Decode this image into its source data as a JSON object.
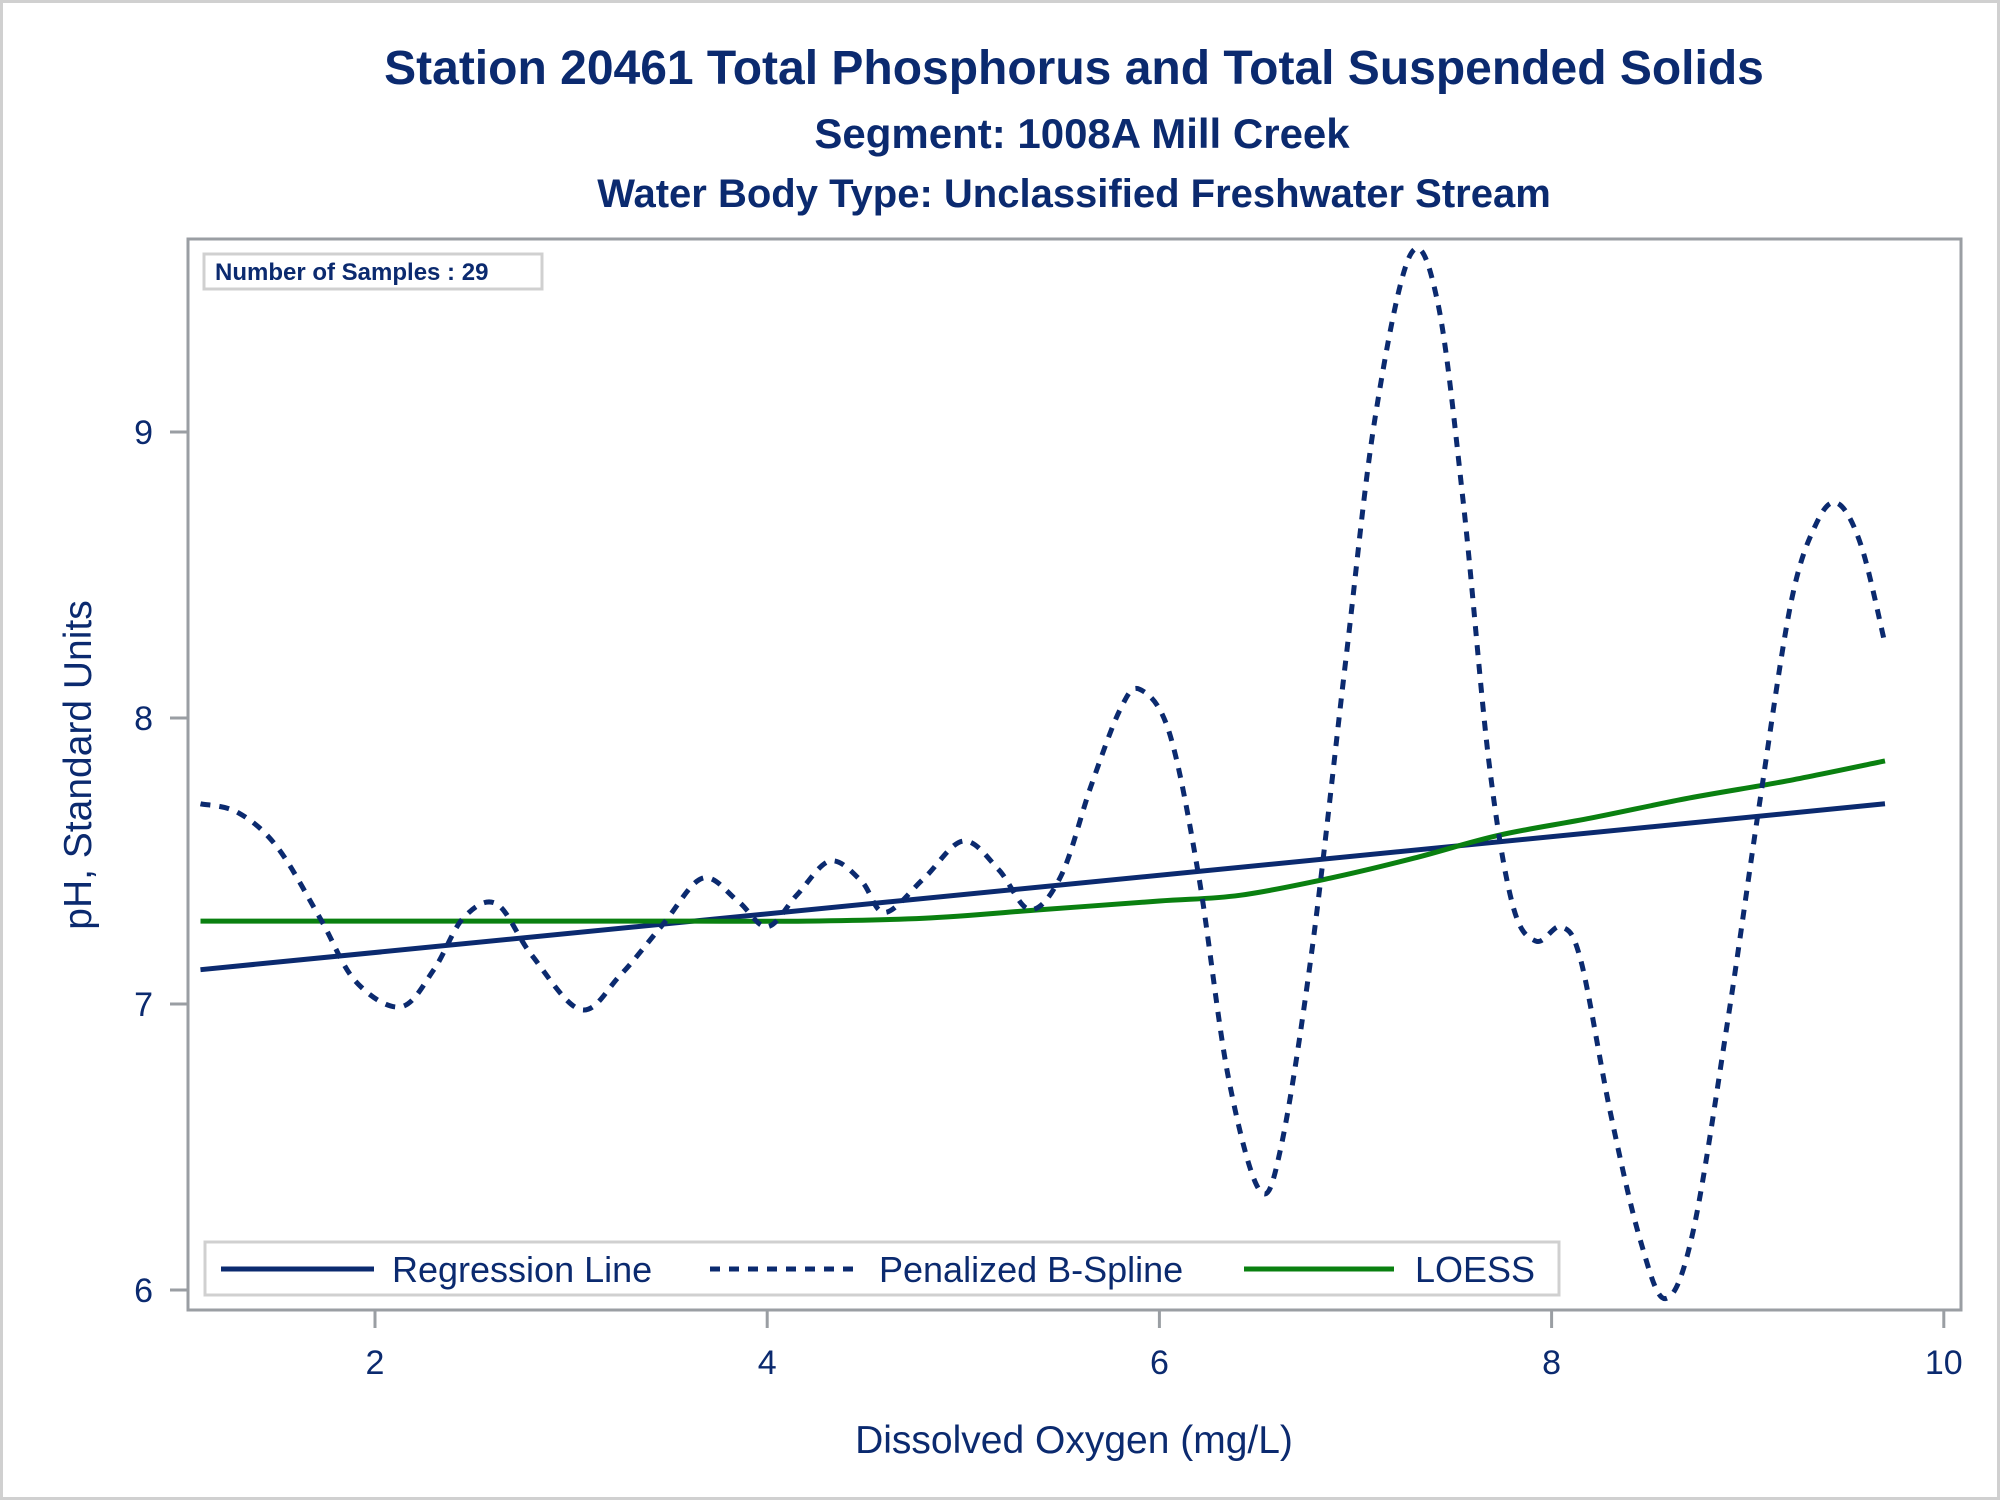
{
  "chart_data": {
    "type": "line",
    "title": "Station 20461  Total Phosphorus and Total Suspended Solids",
    "subtitle": "Segment: 1008A  Mill Creek",
    "subtitle2": "Water Body Type: Unclassified Freshwater Stream",
    "xlabel": "Dissolved Oxygen (mg/L)",
    "ylabel": "pH, Standard Units",
    "xlim": [
      1.06,
      10.09
    ],
    "ylim": [
      5.93,
      9.68
    ],
    "xticks": [
      2,
      4,
      6,
      8,
      10
    ],
    "xtick_labels": [
      "2",
      "4",
      "6",
      "8",
      "10"
    ],
    "yticks": [
      6,
      7,
      8,
      9
    ],
    "ytick_labels": [
      "6",
      "7",
      "8",
      "9"
    ],
    "grid": false,
    "legend_position": "bottom-inside",
    "annotation": "Number of Samples : 29",
    "colors": {
      "navy": "#0b2a6f",
      "green": "#0a8010",
      "frame": "#9a9ea3",
      "border": "#d0d0d0"
    },
    "series": [
      {
        "name": "Regression Line",
        "style": "solid",
        "color": "#0b2a6f",
        "x": [
          1.11,
          9.7
        ],
        "y": [
          7.12,
          7.7
        ]
      },
      {
        "name": "Penalized B-Spline",
        "style": "dashed",
        "color": "#0b2a6f",
        "x": [
          1.11,
          1.3,
          1.5,
          1.72,
          1.9,
          2.13,
          2.3,
          2.45,
          2.62,
          2.8,
          3.05,
          3.25,
          3.47,
          3.67,
          3.85,
          4.0,
          4.15,
          4.32,
          4.48,
          4.6,
          4.8,
          5.0,
          5.18,
          5.34,
          5.5,
          5.65,
          5.8,
          5.9,
          6.05,
          6.2,
          6.35,
          6.51,
          6.62,
          6.78,
          6.95,
          7.1,
          7.28,
          7.42,
          7.55,
          7.68,
          7.8,
          7.92,
          8.05,
          8.15,
          8.3,
          8.45,
          8.58,
          8.72,
          8.9,
          9.06,
          9.22,
          9.35,
          9.46,
          9.58,
          9.7
        ],
        "y": [
          7.7,
          7.67,
          7.55,
          7.3,
          7.08,
          6.99,
          7.12,
          7.3,
          7.35,
          7.17,
          6.98,
          7.1,
          7.28,
          7.44,
          7.36,
          7.27,
          7.38,
          7.5,
          7.43,
          7.32,
          7.44,
          7.57,
          7.47,
          7.33,
          7.45,
          7.76,
          8.03,
          8.1,
          7.95,
          7.45,
          6.75,
          6.35,
          6.5,
          7.2,
          8.2,
          9.05,
          9.62,
          9.45,
          8.75,
          7.85,
          7.35,
          7.22,
          7.27,
          7.15,
          6.62,
          6.18,
          5.97,
          6.2,
          6.95,
          7.7,
          8.4,
          8.68,
          8.75,
          8.6,
          8.26
        ]
      },
      {
        "name": "LOESS",
        "style": "solid",
        "color": "#0a8010",
        "x": [
          1.11,
          2.0,
          3.0,
          3.6,
          4.2,
          4.8,
          5.4,
          6.0,
          6.41,
          6.87,
          7.3,
          7.73,
          8.2,
          8.7,
          9.2,
          9.7
        ],
        "y": [
          7.29,
          7.29,
          7.29,
          7.29,
          7.29,
          7.3,
          7.33,
          7.36,
          7.38,
          7.44,
          7.51,
          7.59,
          7.65,
          7.72,
          7.78,
          7.85
        ]
      }
    ]
  }
}
